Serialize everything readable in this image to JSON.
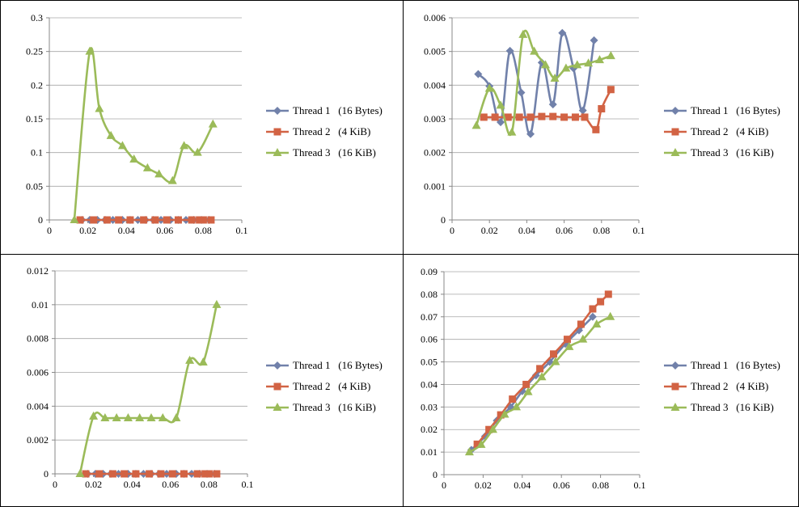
{
  "chart_data": [
    {
      "type": "line",
      "title": "",
      "xlabel": "",
      "ylabel": "",
      "xlim": [
        0,
        0.1
      ],
      "ylim": [
        0,
        0.3
      ],
      "xticks": [
        "0",
        "0.02",
        "0.04",
        "0.06",
        "0.08",
        "0.1"
      ],
      "yticks": [
        "0",
        "0.05",
        "0.1",
        "0.15",
        "0.2",
        "0.25",
        "0.3"
      ],
      "grid": "horizontal",
      "legend": "right",
      "series": [
        {
          "name": "Thread 1   (16 Bytes)",
          "color": "#7181aa",
          "marker": "diamond",
          "x": [
            0.017,
            0.021,
            0.025,
            0.029,
            0.033,
            0.038,
            0.042,
            0.046,
            0.05,
            0.054,
            0.058,
            0.063,
            0.067,
            0.071,
            0.075,
            0.079,
            0.083
          ],
          "y": [
            0,
            0,
            0,
            0,
            0,
            0,
            0,
            0,
            0,
            0,
            0,
            0,
            0,
            0,
            0,
            0,
            0
          ]
        },
        {
          "name": "Thread 2   (4 KiB)",
          "color": "#d26344",
          "marker": "square",
          "x": [
            0.016,
            0.023,
            0.03,
            0.036,
            0.042,
            0.049,
            0.055,
            0.061,
            0.067,
            0.074,
            0.078,
            0.08,
            0.084
          ],
          "y": [
            0,
            0,
            0,
            0,
            0,
            0,
            0,
            0,
            0,
            0,
            0,
            0,
            0
          ]
        },
        {
          "name": "Thread 3   (16 KiB)",
          "color": "#9bbb59",
          "marker": "triangle",
          "x": [
            0.013,
            0.021,
            0.026,
            0.032,
            0.038,
            0.044,
            0.051,
            0.057,
            0.064,
            0.07,
            0.077,
            0.085
          ],
          "y": [
            0,
            0.25,
            0.165,
            0.125,
            0.11,
            0.09,
            0.077,
            0.068,
            0.058,
            0.11,
            0.1,
            0.142
          ]
        }
      ]
    },
    {
      "type": "line",
      "title": "",
      "xlabel": "",
      "ylabel": "",
      "xlim": [
        0,
        0.1
      ],
      "ylim": [
        0,
        0.006
      ],
      "xticks": [
        "0",
        "0.02",
        "0.04",
        "0.06",
        "0.08",
        "0.1"
      ],
      "yticks": [
        "0",
        "0.001",
        "0.002",
        "0.003",
        "0.004",
        "0.005",
        "0.006"
      ],
      "grid": "horizontal",
      "legend": "right",
      "series": [
        {
          "name": "Thread 1   (16 Bytes)",
          "color": "#7181aa",
          "marker": "diamond",
          "x": [
            0.014,
            0.02,
            0.026,
            0.031,
            0.037,
            0.042,
            0.048,
            0.054,
            0.059,
            0.065,
            0.07,
            0.076
          ],
          "y": [
            0.00433,
            0.00397,
            0.0029,
            0.00502,
            0.00378,
            0.00255,
            0.00467,
            0.00343,
            0.00555,
            0.0045,
            0.00325,
            0.00533
          ]
        },
        {
          "name": "Thread 2   (4 KiB)",
          "color": "#d26344",
          "marker": "square",
          "x": [
            0.017,
            0.023,
            0.03,
            0.036,
            0.042,
            0.048,
            0.054,
            0.06,
            0.066,
            0.071,
            0.077,
            0.08,
            0.085
          ],
          "y": [
            0.00305,
            0.00305,
            0.00305,
            0.00305,
            0.00305,
            0.00307,
            0.00307,
            0.00305,
            0.00305,
            0.00305,
            0.00268,
            0.0033,
            0.00387
          ]
        },
        {
          "name": "Thread 3   (16 KiB)",
          "color": "#9bbb59",
          "marker": "triangle",
          "x": [
            0.013,
            0.02,
            0.026,
            0.032,
            0.038,
            0.044,
            0.05,
            0.055,
            0.061,
            0.067,
            0.073,
            0.079,
            0.085
          ],
          "y": [
            0.0028,
            0.0039,
            0.0034,
            0.0026,
            0.0055,
            0.005,
            0.0046,
            0.0042,
            0.0045,
            0.0046,
            0.00465,
            0.00475,
            0.00487
          ]
        }
      ]
    },
    {
      "type": "line",
      "title": "",
      "xlabel": "",
      "ylabel": "",
      "xlim": [
        0,
        0.1
      ],
      "ylim": [
        0,
        0.012
      ],
      "xticks": [
        "0",
        "0.02",
        "0.04",
        "0.06",
        "0.08",
        "0.1"
      ],
      "yticks": [
        "0",
        "0.002",
        "0.004",
        "0.006",
        "0.008",
        "0.01",
        "0.012"
      ],
      "grid": "horizontal",
      "legend": "right",
      "series": [
        {
          "name": "Thread 1   (16 Bytes)",
          "color": "#7181aa",
          "marker": "diamond",
          "x": [
            0.017,
            0.021,
            0.025,
            0.029,
            0.033,
            0.038,
            0.042,
            0.046,
            0.05,
            0.054,
            0.058,
            0.063,
            0.067,
            0.071,
            0.075,
            0.079,
            0.083
          ],
          "y": [
            0,
            0,
            0,
            0,
            0,
            0,
            0,
            0,
            0,
            0,
            0,
            0,
            0,
            0,
            0,
            0,
            0
          ]
        },
        {
          "name": "Thread 2   (4 KiB)",
          "color": "#d26344",
          "marker": "square",
          "x": [
            0.016,
            0.023,
            0.03,
            0.036,
            0.042,
            0.049,
            0.055,
            0.061,
            0.067,
            0.074,
            0.078,
            0.08,
            0.084
          ],
          "y": [
            0,
            0,
            0,
            0,
            0,
            0,
            0,
            0,
            0,
            0,
            0,
            0,
            0
          ]
        },
        {
          "name": "Thread 3   (16 KiB)",
          "color": "#9bbb59",
          "marker": "triangle",
          "x": [
            0.013,
            0.02,
            0.026,
            0.032,
            0.038,
            0.044,
            0.05,
            0.056,
            0.063,
            0.07,
            0.077,
            0.084
          ],
          "y": [
            0,
            0.0034,
            0.0033,
            0.0033,
            0.0033,
            0.0033,
            0.0033,
            0.0033,
            0.0033,
            0.0067,
            0.0066,
            0.01
          ]
        }
      ]
    },
    {
      "type": "line",
      "title": "",
      "xlabel": "",
      "ylabel": "",
      "xlim": [
        0,
        0.1
      ],
      "ylim": [
        0,
        0.09
      ],
      "xticks": [
        "0",
        "0.02",
        "0.04",
        "0.06",
        "0.08",
        "0.1"
      ],
      "yticks": [
        "0",
        "0.01",
        "0.02",
        "0.03",
        "0.04",
        "0.05",
        "0.06",
        "0.07",
        "0.08",
        "0.09"
      ],
      "grid": "horizontal",
      "legend": "right",
      "series": [
        {
          "name": "Thread 1   (16 Bytes)",
          "color": "#7181aa",
          "marker": "diamond",
          "x": [
            0.014,
            0.021,
            0.027,
            0.034,
            0.04,
            0.047,
            0.054,
            0.062,
            0.069,
            0.076
          ],
          "y": [
            0.011,
            0.017,
            0.024,
            0.03,
            0.037,
            0.044,
            0.05,
            0.058,
            0.064,
            0.07
          ]
        },
        {
          "name": "Thread 2   (4 KiB)",
          "color": "#d26344",
          "marker": "square",
          "x": [
            0.017,
            0.023,
            0.029,
            0.035,
            0.042,
            0.049,
            0.056,
            0.063,
            0.07,
            0.076,
            0.08,
            0.084
          ],
          "y": [
            0.0135,
            0.02,
            0.0265,
            0.0335,
            0.04,
            0.047,
            0.0535,
            0.06,
            0.0667,
            0.0735,
            0.0767,
            0.08
          ]
        },
        {
          "name": "Thread 3   (16 KiB)",
          "color": "#9bbb59",
          "marker": "triangle",
          "x": [
            0.013,
            0.019,
            0.025,
            0.031,
            0.037,
            0.043,
            0.05,
            0.057,
            0.064,
            0.071,
            0.078,
            0.085
          ],
          "y": [
            0.01,
            0.0133,
            0.02,
            0.0267,
            0.03,
            0.0367,
            0.0433,
            0.05,
            0.0567,
            0.06,
            0.0667,
            0.07
          ]
        }
      ]
    }
  ]
}
